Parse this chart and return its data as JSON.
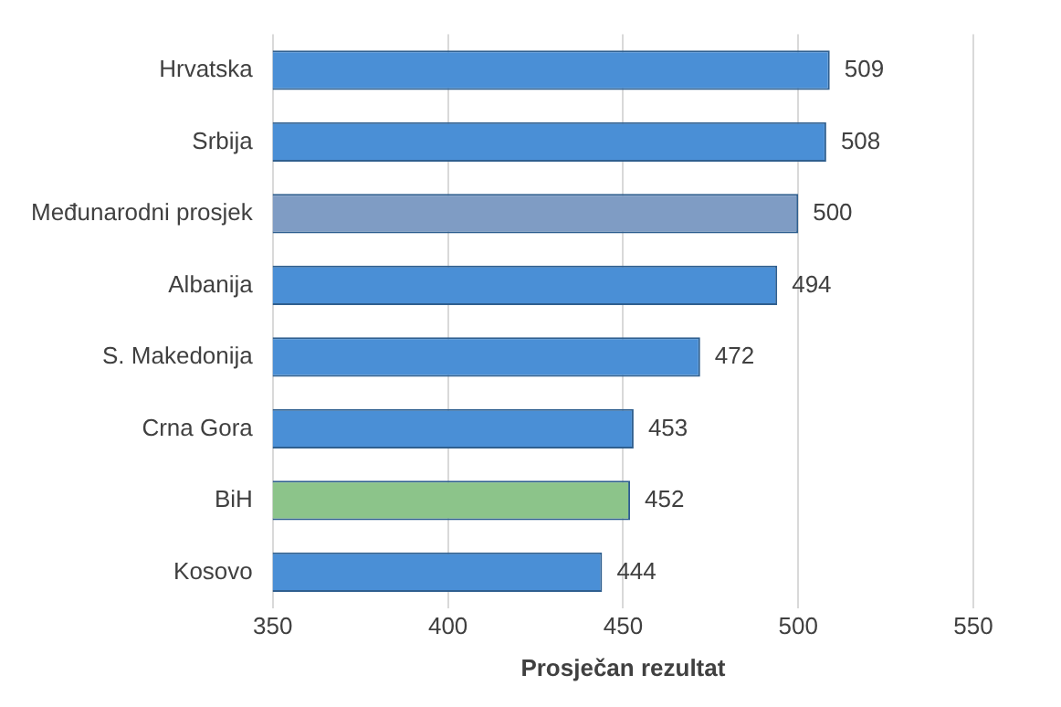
{
  "chart_data": {
    "type": "bar",
    "orientation": "horizontal",
    "xlabel": "Prosječan rezultat",
    "categories": [
      "Hrvatska",
      "Srbija",
      "Međunarodni prosjek",
      "Albanija",
      "S. Makedonija",
      "Crna Gora",
      "BiH",
      "Kosovo"
    ],
    "values": [
      509,
      508,
      500,
      494,
      472,
      453,
      452,
      444
    ],
    "colors": [
      "#4a8fd6",
      "#4a8fd6",
      "#7f9cc4",
      "#4a8fd6",
      "#4a8fd6",
      "#4a8fd6",
      "#8cc48a",
      "#4a8fd6"
    ],
    "xlim": [
      350,
      550
    ],
    "xticks": [
      350,
      400,
      450,
      500,
      550
    ],
    "grid": "x",
    "data_labels": true,
    "legend": false
  }
}
